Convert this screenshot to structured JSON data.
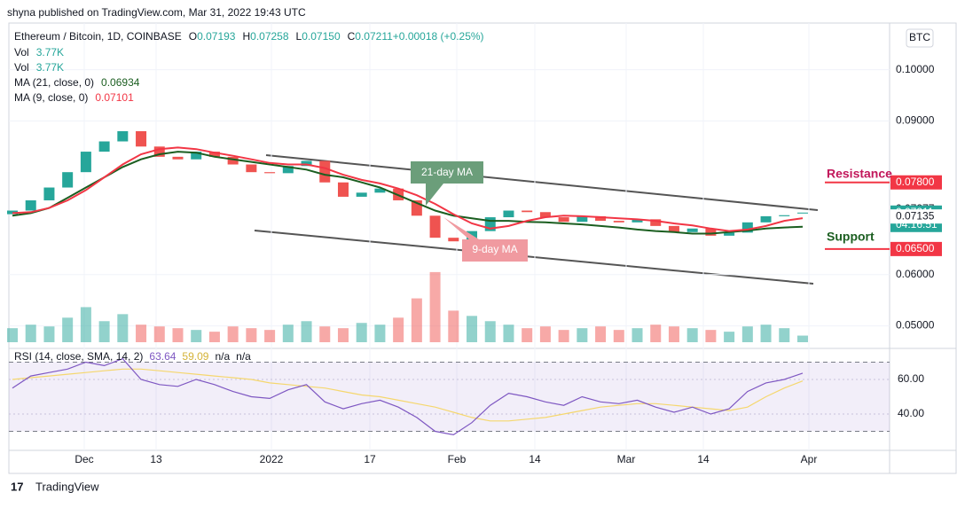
{
  "chart_data": {
    "type": "candlestick",
    "published": "shyna published on TradingView.com, Mar 31, 2022 19:43 UTC",
    "symbol": "Ethereum / Bitcoin, 1D, COINBASE",
    "ohlc_legend": [
      {
        "key": "O",
        "value": "0.07193"
      },
      {
        "key": "H",
        "value": "0.07258"
      },
      {
        "key": "L",
        "value": "0.07150"
      },
      {
        "key": "C",
        "value": "0.07211"
      },
      {
        "key": "",
        "value": "+0.00018 (+0.25%)"
      }
    ],
    "indicator_legend": [
      {
        "name": "Vol",
        "value": "3.77K"
      },
      {
        "name": "Vol",
        "value": "3.77K"
      },
      {
        "name": "MA (21, close, 0)",
        "value": "0.06934"
      },
      {
        "name": "MA (9, close, 0)",
        "value": "0.07101"
      }
    ],
    "currency": "BTC",
    "open": [
      0.0718,
      0.0725,
      0.0745,
      0.077,
      0.08,
      0.084,
      0.086,
      0.088,
      0.085,
      0.083,
      0.0825,
      0.084,
      0.083,
      0.0815,
      0.08,
      0.0798,
      0.0812,
      0.0822,
      0.078,
      0.0752,
      0.076,
      0.0768,
      0.0745,
      0.0715,
      0.0672,
      0.0665,
      0.0685,
      0.0712,
      0.0725,
      0.0722,
      0.0712,
      0.0703,
      0.0714,
      0.0705,
      0.0702,
      0.0708,
      0.0695,
      0.0683,
      0.069,
      0.0676,
      0.0682,
      0.0702,
      0.0714,
      0.07193
    ],
    "close": [
      0.0725,
      0.0745,
      0.077,
      0.08,
      0.084,
      0.086,
      0.088,
      0.085,
      0.083,
      0.0825,
      0.084,
      0.083,
      0.0815,
      0.08,
      0.0798,
      0.0812,
      0.0822,
      0.078,
      0.0752,
      0.076,
      0.0768,
      0.0745,
      0.0715,
      0.0672,
      0.0665,
      0.0685,
      0.0712,
      0.0725,
      0.0722,
      0.0712,
      0.0703,
      0.0714,
      0.0705,
      0.0702,
      0.0708,
      0.0695,
      0.0683,
      0.069,
      0.0676,
      0.0682,
      0.0702,
      0.0714,
      0.0716,
      0.07211
    ],
    "up_color": "#26a69a",
    "down_color": "#ef5350",
    "ma": [
      {
        "name": "21-day MA",
        "color": "#1b5e20",
        "values": [
          0.0715,
          0.072,
          0.073,
          0.075,
          0.077,
          0.079,
          0.081,
          0.0825,
          0.0835,
          0.084,
          0.0838,
          0.083,
          0.0825,
          0.082,
          0.0815,
          0.081,
          0.0805,
          0.0795,
          0.079,
          0.078,
          0.077,
          0.0755,
          0.074,
          0.0725,
          0.0715,
          0.071,
          0.0705,
          0.0705,
          0.0703,
          0.0702,
          0.07,
          0.0698,
          0.0695,
          0.0692,
          0.0688,
          0.0685,
          0.0683,
          0.068,
          0.068,
          0.0683,
          0.0686,
          0.069,
          0.0692,
          0.06934
        ]
      },
      {
        "name": "9-day MA",
        "color": "#f23645",
        "values": [
          0.072,
          0.0722,
          0.073,
          0.0745,
          0.0765,
          0.079,
          0.0815,
          0.0835,
          0.0845,
          0.0848,
          0.0845,
          0.0838,
          0.0832,
          0.0825,
          0.0818,
          0.0815,
          0.0815,
          0.0808,
          0.0795,
          0.0785,
          0.0778,
          0.0768,
          0.0755,
          0.0738,
          0.0718,
          0.07,
          0.069,
          0.0695,
          0.0705,
          0.0712,
          0.0715,
          0.0714,
          0.0712,
          0.071,
          0.0708,
          0.0705,
          0.07,
          0.0696,
          0.069,
          0.0685,
          0.0688,
          0.0695,
          0.0705,
          0.07101
        ]
      }
    ],
    "volume": [
      8,
      10,
      9,
      14,
      20,
      12,
      16,
      10,
      9,
      8,
      7,
      6,
      9,
      8,
      7,
      10,
      12,
      9,
      8,
      11,
      10,
      14,
      25,
      40,
      18,
      15,
      12,
      10,
      8,
      9,
      7,
      8,
      9,
      7,
      8,
      10,
      9,
      8,
      7,
      6,
      9,
      10,
      8,
      3.77
    ],
    "vlim": [
      0,
      45
    ],
    "ylim": [
      0.0456,
      0.1091
    ],
    "yticks": [
      {
        "value": 0.05,
        "label": "0.05000"
      },
      {
        "value": 0.06,
        "label": "0.06000"
      },
      {
        "value": 0.09,
        "label": "0.09000"
      },
      {
        "value": 0.1,
        "label": "0.10000"
      }
    ],
    "price_labels": [
      {
        "value": 0.078,
        "label": "0.07800",
        "color": "#f23645"
      },
      {
        "value": 0.07277,
        "label": "0.07277",
        "color": "#ffffff"
      },
      {
        "value": 0.07211,
        "label": "0.07211",
        "color": "#26a69a",
        "countdown": "04:16:51"
      },
      {
        "value": 0.07135,
        "label": "0.07135",
        "color": "#ffffff"
      },
      {
        "value": 0.065,
        "label": "0.06500",
        "color": "#f23645"
      }
    ],
    "annotations": [
      "Resistance",
      "Support"
    ],
    "xticks": [
      "Dec",
      "13",
      "2022",
      "17",
      "Feb",
      "14",
      "Mar",
      "14",
      "Apr"
    ],
    "rsi": {
      "legend": [
        "RSI (14, close, SMA, 14, 2)",
        "63.64",
        "59.09",
        "n/a",
        "n/a"
      ],
      "values": [
        55,
        62,
        64,
        66,
        70,
        68,
        72,
        60,
        57,
        56,
        60,
        57,
        53,
        50,
        49,
        54,
        57,
        47,
        43,
        46,
        48,
        44,
        38,
        30,
        28,
        35,
        45,
        52,
        50,
        47,
        45,
        50,
        47,
        46,
        48,
        44,
        41,
        44,
        40,
        43,
        53,
        58,
        60,
        63.64
      ],
      "sma": [
        60,
        61,
        62,
        63,
        64,
        65,
        66,
        66,
        65,
        64,
        63,
        62,
        61,
        60,
        58,
        57,
        56,
        55,
        53,
        51,
        50,
        48,
        46,
        44,
        41,
        38,
        36,
        36,
        37,
        38,
        40,
        42,
        44,
        45,
        46,
        46,
        45,
        44,
        43,
        42,
        44,
        50,
        55,
        59.09
      ],
      "color": "#7e57c2",
      "sma_color": "#f5d76e",
      "band": [
        30,
        70
      ],
      "ylim": [
        20.5,
        76.9
      ],
      "yticks": [
        {
          "value": 40,
          "label": "40.00"
        },
        {
          "value": 60,
          "label": "60.00"
        }
      ]
    },
    "footer": "TradingView"
  }
}
